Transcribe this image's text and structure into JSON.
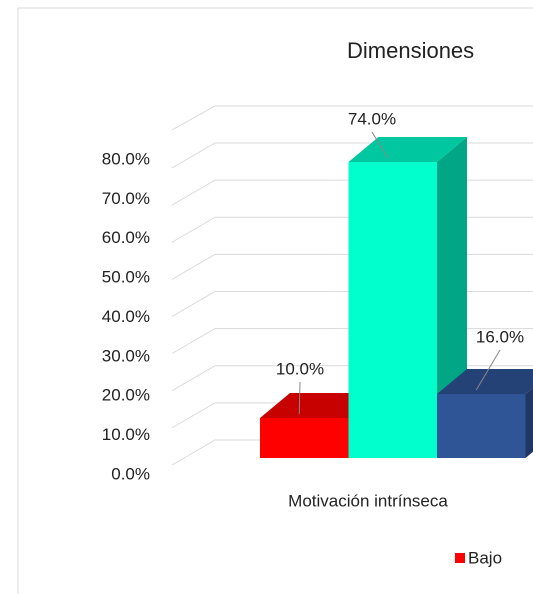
{
  "chart_data": {
    "type": "bar3d",
    "title": "Dimensiones",
    "categories": [
      "Motivación intrínseca"
    ],
    "series": [
      {
        "name": "Bajo",
        "color": "#ff0000",
        "values": [
          10
        ],
        "value_labels": [
          "10.0%"
        ]
      },
      {
        "color": "#00ffcc",
        "values": [
          74
        ],
        "value_labels": [
          "74.0%"
        ]
      },
      {
        "color": "#2f5597",
        "values": [
          16
        ],
        "value_labels": [
          "16.0%"
        ]
      }
    ],
    "ylim": [
      0,
      80
    ],
    "yticks": [
      {
        "value": 0,
        "label": "0.0%"
      },
      {
        "value": 10,
        "label": "10.0%"
      },
      {
        "value": 20,
        "label": "20.0%"
      },
      {
        "value": 30,
        "label": "30.0%"
      },
      {
        "value": 40,
        "label": "40.0%"
      },
      {
        "value": 50,
        "label": "50.0%"
      },
      {
        "value": 60,
        "label": "60.0%"
      },
      {
        "value": 70,
        "label": "70.0%"
      },
      {
        "value": 80,
        "label": "80.0%"
      }
    ],
    "grid": true
  }
}
